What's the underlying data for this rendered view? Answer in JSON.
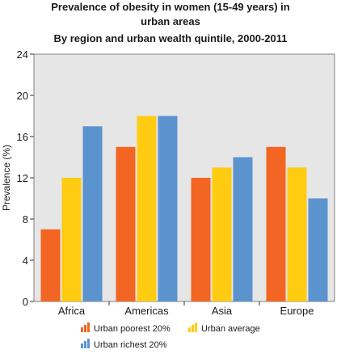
{
  "chart_data": {
    "type": "bar",
    "title": "Prevalence of obesity in women (15-49 years) in urban areas",
    "title_lines": [
      "Prevalence of obesity in women (15-49 years) in",
      "urban areas"
    ],
    "subtitle": "By region and urban wealth quintile, 2000-2011",
    "xlabel": "",
    "ylabel": "Prevalence (%)",
    "ylim": [
      0,
      24
    ],
    "yticks": [
      0,
      4,
      8,
      12,
      16,
      20,
      24
    ],
    "grid": false,
    "legend_position": "bottom",
    "categories": [
      "Africa",
      "Americas",
      "Asia",
      "Europe"
    ],
    "series": [
      {
        "name": "Urban poorest 20%",
        "color": "#f26522",
        "values": [
          7,
          15,
          12,
          15
        ]
      },
      {
        "name": "Urban average",
        "color": "#ffcc12",
        "values": [
          12,
          18,
          13,
          13
        ]
      },
      {
        "name": "Urban richest 20%",
        "color": "#5b93cf",
        "values": [
          17,
          18,
          14,
          10
        ]
      }
    ],
    "plot_background": "#e6e6e6"
  }
}
